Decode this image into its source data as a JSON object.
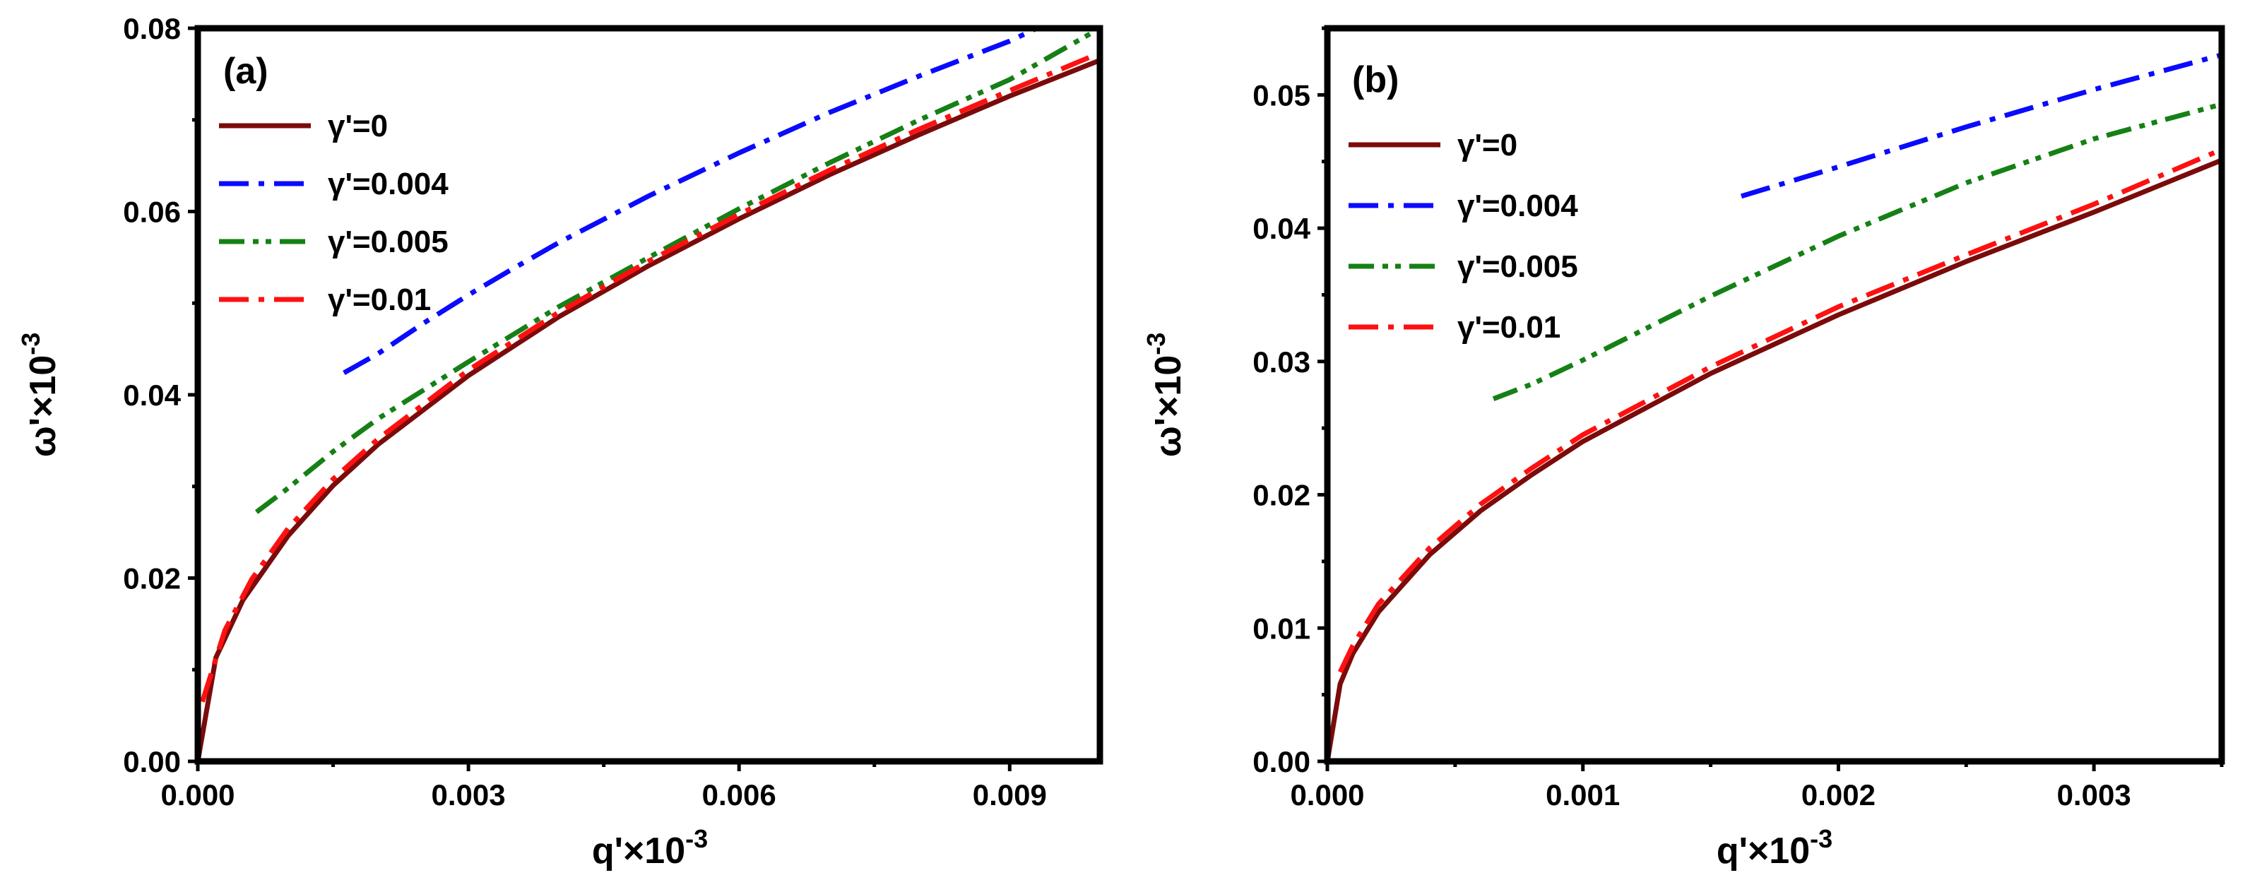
{
  "chart_data": [
    {
      "type": "line",
      "panel_label": "(a)",
      "xlabel": "q'×10",
      "xlabel_sup": "-3",
      "ylabel": "ω'×10",
      "ylabel_sup": "-3",
      "xlim": [
        0,
        0.01
      ],
      "ylim": [
        0,
        0.08
      ],
      "xticks": [
        0,
        0.003,
        0.006,
        0.009
      ],
      "xtick_labels": [
        "0.000",
        "0.003",
        "0.006",
        "0.009"
      ],
      "yticks": [
        0,
        0.02,
        0.04,
        0.06,
        0.08
      ],
      "ytick_labels": [
        "0.00",
        "0.02",
        "0.04",
        "0.06",
        "0.08"
      ],
      "legend_position": "top-left",
      "series": [
        {
          "name": "γ'=0",
          "color": "#7b0b0b",
          "style": "solid",
          "x": [
            0,
            0.0002,
            0.0005,
            0.001,
            0.0015,
            0.002,
            0.003,
            0.004,
            0.005,
            0.006,
            0.007,
            0.008,
            0.009,
            0.01
          ],
          "y": [
            0,
            0.0113,
            0.0176,
            0.0246,
            0.0301,
            0.0346,
            0.0421,
            0.0485,
            0.0541,
            0.0592,
            0.064,
            0.0684,
            0.0726,
            0.0765
          ]
        },
        {
          "name": "γ'=0.004",
          "color": "#0a0aff",
          "style": "dashdot",
          "x": [
            0.00162,
            0.002,
            0.0025,
            0.003,
            0.0035,
            0.004,
            0.005,
            0.006,
            0.007,
            0.008,
            0.009,
            0.0093
          ],
          "y": [
            0.0424,
            0.0445,
            0.0478,
            0.0509,
            0.0538,
            0.0566,
            0.0617,
            0.0664,
            0.0708,
            0.0748,
            0.0786,
            0.08
          ]
        },
        {
          "name": "γ'=0.005",
          "color": "#158015",
          "style": "dashdotdot",
          "x": [
            0.00065,
            0.001,
            0.0015,
            0.002,
            0.003,
            0.004,
            0.005,
            0.006,
            0.007,
            0.008,
            0.009,
            0.01
          ],
          "y": [
            0.0272,
            0.0298,
            0.0338,
            0.0374,
            0.0436,
            0.0496,
            0.055,
            0.0603,
            0.0653,
            0.07,
            0.0744,
            0.08
          ]
        },
        {
          "name": "γ'=0.01",
          "color": "#ff1010",
          "style": "dashdot",
          "x": [
            5e-05,
            0.0003,
            0.0006,
            0.001,
            0.0015,
            0.002,
            0.003,
            0.004,
            0.005,
            0.006,
            0.007,
            0.008,
            0.009,
            0.01
          ],
          "y": [
            0.0065,
            0.0143,
            0.0199,
            0.0254,
            0.0308,
            0.0352,
            0.0427,
            0.049,
            0.0546,
            0.0597,
            0.0645,
            0.069,
            0.0732,
            0.0773
          ]
        }
      ]
    },
    {
      "type": "line",
      "panel_label": "(b)",
      "xlabel": "q'×10",
      "xlabel_sup": "-3",
      "ylabel": "ω'×10",
      "ylabel_sup": "-3",
      "xlim": [
        0,
        0.0035
      ],
      "ylim": [
        0,
        0.055
      ],
      "xticks": [
        0,
        0.001,
        0.002,
        0.003
      ],
      "xtick_labels": [
        "0.000",
        "0.001",
        "0.002",
        "0.003"
      ],
      "yticks": [
        0,
        0.01,
        0.02,
        0.03,
        0.04,
        0.05
      ],
      "ytick_labels": [
        "0.00",
        "0.01",
        "0.02",
        "0.03",
        "0.04",
        "0.05"
      ],
      "legend_position": "top-left",
      "series": [
        {
          "name": "γ'=0",
          "color": "#7b0b0b",
          "style": "solid",
          "x": [
            0,
            5e-05,
            0.0001,
            0.0002,
            0.0004,
            0.0006,
            0.0008,
            0.001,
            0.0015,
            0.002,
            0.0025,
            0.003,
            0.0035
          ],
          "y": [
            0,
            0.0058,
            0.0081,
            0.0112,
            0.0155,
            0.0188,
            0.0215,
            0.024,
            0.0291,
            0.0335,
            0.0375,
            0.0412,
            0.0451
          ]
        },
        {
          "name": "γ'=0.004",
          "color": "#0a0aff",
          "style": "dashdot",
          "x": [
            0.00162,
            0.002,
            0.0025,
            0.003,
            0.0035
          ],
          "y": [
            0.0424,
            0.0446,
            0.0476,
            0.0504,
            0.053
          ]
        },
        {
          "name": "γ'=0.005",
          "color": "#158015",
          "style": "dashdotdot",
          "x": [
            0.00065,
            0.0008,
            0.001,
            0.0015,
            0.002,
            0.0025,
            0.003,
            0.0035
          ],
          "y": [
            0.0272,
            0.0283,
            0.0301,
            0.0349,
            0.0394,
            0.0434,
            0.0467,
            0.0493
          ]
        },
        {
          "name": "γ'=0.01",
          "color": "#ff1010",
          "style": "dashdot",
          "x": [
            5e-05,
            0.0001,
            0.0002,
            0.0004,
            0.0006,
            0.0008,
            0.001,
            0.0015,
            0.002,
            0.0025,
            0.003,
            0.0035
          ],
          "y": [
            0.0067,
            0.0087,
            0.0118,
            0.016,
            0.0193,
            0.022,
            0.0245,
            0.0296,
            0.0341,
            0.038,
            0.0418,
            0.0459
          ]
        }
      ]
    }
  ]
}
